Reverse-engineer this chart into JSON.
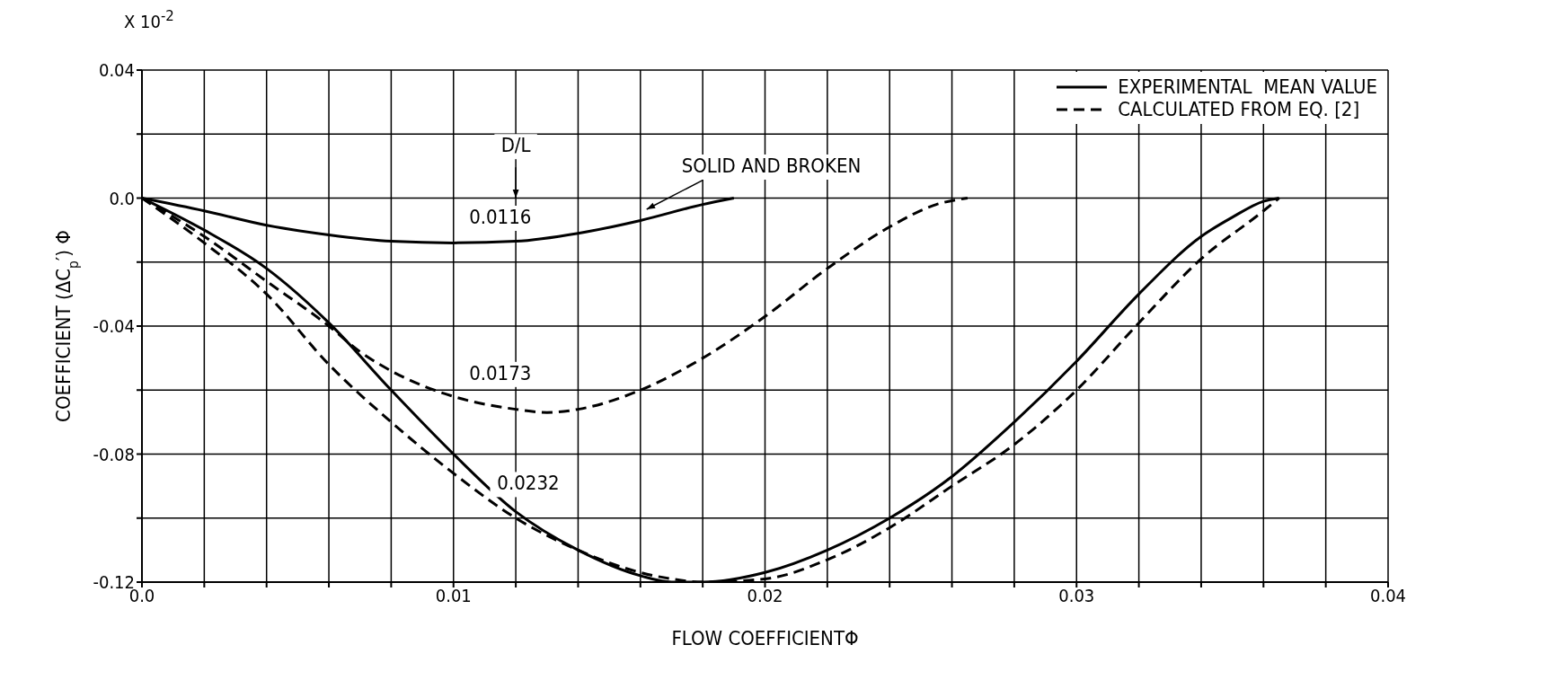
{
  "chart_data": {
    "type": "line",
    "xlabel": "FLOW COEFFICIENTΦ",
    "ylabel": "COEFFICIENT (ΔC$_{p}$′) Φ",
    "xlim": [
      0,
      0.04
    ],
    "ylim": [
      -0.12,
      0.04
    ],
    "xticks": [
      {
        "value": 0,
        "label": "0.0"
      },
      {
        "value": 0.002,
        "label": null
      },
      {
        "value": 0.004,
        "label": null
      },
      {
        "value": 0.006,
        "label": null
      },
      {
        "value": 0.008,
        "label": null
      },
      0.01,
      {
        "value": 0.012,
        "label": null
      },
      {
        "value": 0.014,
        "label": null
      },
      {
        "value": 0.016,
        "label": null
      },
      {
        "value": 0.018,
        "label": null
      },
      0.02,
      {
        "value": 0.022,
        "label": null
      },
      {
        "value": 0.024,
        "label": null
      },
      {
        "value": 0.026,
        "label": null
      },
      {
        "value": 0.028,
        "label": null
      },
      0.03,
      {
        "value": 0.032,
        "label": null
      },
      {
        "value": 0.034,
        "label": null
      },
      {
        "value": 0.036,
        "label": null
      },
      {
        "value": 0.038,
        "label": null
      },
      0.04
    ],
    "yticks": [
      -0.12,
      {
        "value": -0.1,
        "label": null
      },
      -0.08,
      {
        "value": -0.06,
        "label": null
      },
      -0.04,
      {
        "value": -0.02,
        "label": null
      },
      {
        "value": 0,
        "label": "0.0"
      },
      {
        "value": 0.02,
        "label": null
      },
      0.04
    ],
    "grid": true,
    "legend": "top right",
    "marker": "none",
    "series": [
      {
        "name": "EXPERIMENTAL  MEAN VALUE",
        "color": "#000000",
        "line_style": "solid",
        "x": [
          0,
          0.002,
          0.004,
          0.006,
          0.008,
          0.01,
          0.012,
          0.014,
          0.016,
          0.018,
          0.019
        ],
        "values": [
          0,
          -0.004,
          -0.0085,
          -0.0115,
          -0.0135,
          -0.014,
          -0.0135,
          -0.011,
          -0.007,
          -0.002,
          0
        ]
      },
      {
        "name": "CALCULATED FROM EQ. [2]",
        "color": "#000000",
        "line_style": "dashed",
        "x": [
          0,
          0.002,
          0.004,
          0.006,
          0.007,
          0.008,
          0.01,
          0.012,
          0.013,
          0.014,
          0.016,
          0.018,
          0.02,
          0.022,
          0.024,
          0.0255,
          0.0265
        ],
        "values": [
          0,
          -0.012,
          -0.026,
          -0.04,
          -0.048,
          -0.054,
          -0.062,
          -0.066,
          -0.067,
          -0.066,
          -0.06,
          -0.05,
          -0.037,
          -0.022,
          -0.009,
          -0.002,
          0
        ]
      },
      {
        "color": "#000000",
        "line_style": "solid",
        "x": [
          0,
          0.002,
          0.004,
          0.006,
          0.008,
          0.01,
          0.012,
          0.014,
          0.016,
          0.017,
          0.018,
          0.02,
          0.022,
          0.024,
          0.026,
          0.028,
          0.03,
          0.032,
          0.034,
          0.035,
          0.036,
          0.0365
        ],
        "values": [
          0,
          -0.01,
          -0.022,
          -0.039,
          -0.06,
          -0.08,
          -0.098,
          -0.11,
          -0.118,
          -0.12,
          -0.12,
          -0.117,
          -0.11,
          -0.1,
          -0.087,
          -0.07,
          -0.051,
          -0.03,
          -0.012,
          -0.006,
          -0.001,
          0
        ]
      },
      {
        "color": "#000000",
        "line_style": "dashed",
        "x": [
          0,
          0.002,
          0.004,
          0.006,
          0.008,
          0.01,
          0.012,
          0.014,
          0.016,
          0.017,
          0.018,
          0.02,
          0.022,
          0.024,
          0.026,
          0.028,
          0.03,
          0.032,
          0.034,
          0.036,
          0.0365
        ],
        "values": [
          0,
          -0.014,
          -0.03,
          -0.052,
          -0.07,
          -0.086,
          -0.1,
          -0.11,
          -0.117,
          -0.119,
          -0.12,
          -0.119,
          -0.113,
          -0.103,
          -0.09,
          -0.077,
          -0.06,
          -0.039,
          -0.019,
          -0.004,
          0
        ]
      }
    ],
    "annotations": [
      "X 10$^{-2}$",
      "D/L",
      "0.0116",
      "0.0173",
      "0.0232",
      "SOLID AND BROKEN"
    ]
  }
}
